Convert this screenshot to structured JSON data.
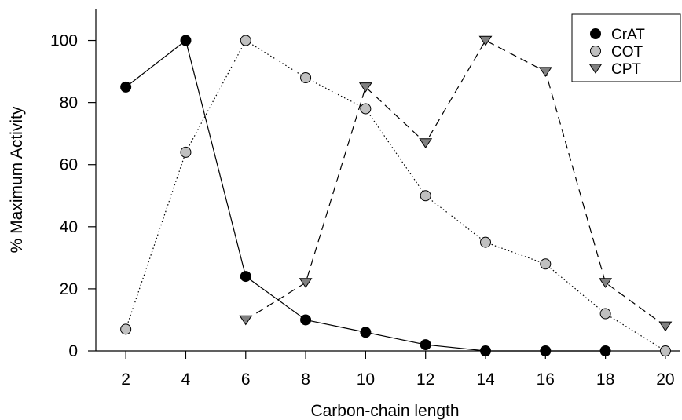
{
  "chart_data": {
    "type": "line",
    "xlabel": "Carbon-chain length",
    "ylabel": "% Maximum Activity",
    "xlim": [
      1,
      20.5
    ],
    "ylim": [
      0,
      110
    ],
    "xticks": [
      2,
      4,
      6,
      8,
      10,
      12,
      14,
      16,
      18,
      20
    ],
    "yticks": [
      0,
      20,
      40,
      60,
      80,
      100
    ],
    "grid": false,
    "legend_position": "top-right",
    "series": [
      {
        "name": "CrAT",
        "marker": "circle",
        "line_style": "solid",
        "color": "#000000",
        "x": [
          2,
          4,
          6,
          8,
          10,
          12,
          14,
          16,
          18
        ],
        "y": [
          85,
          100,
          24,
          10,
          6,
          2,
          0,
          0,
          0
        ]
      },
      {
        "name": "COT",
        "marker": "circle",
        "line_style": "dotted",
        "color": "#c0c0c0",
        "x": [
          2,
          4,
          6,
          8,
          10,
          12,
          14,
          16,
          18,
          20
        ],
        "y": [
          7,
          64,
          100,
          88,
          78,
          50,
          35,
          28,
          12,
          0
        ]
      },
      {
        "name": "CPT",
        "marker": "triangle-down",
        "line_style": "dashed",
        "color": "#808080",
        "x": [
          6,
          8,
          10,
          12,
          14,
          16,
          18,
          20
        ],
        "y": [
          10,
          22,
          85,
          67,
          100,
          90,
          22,
          8
        ]
      }
    ]
  }
}
